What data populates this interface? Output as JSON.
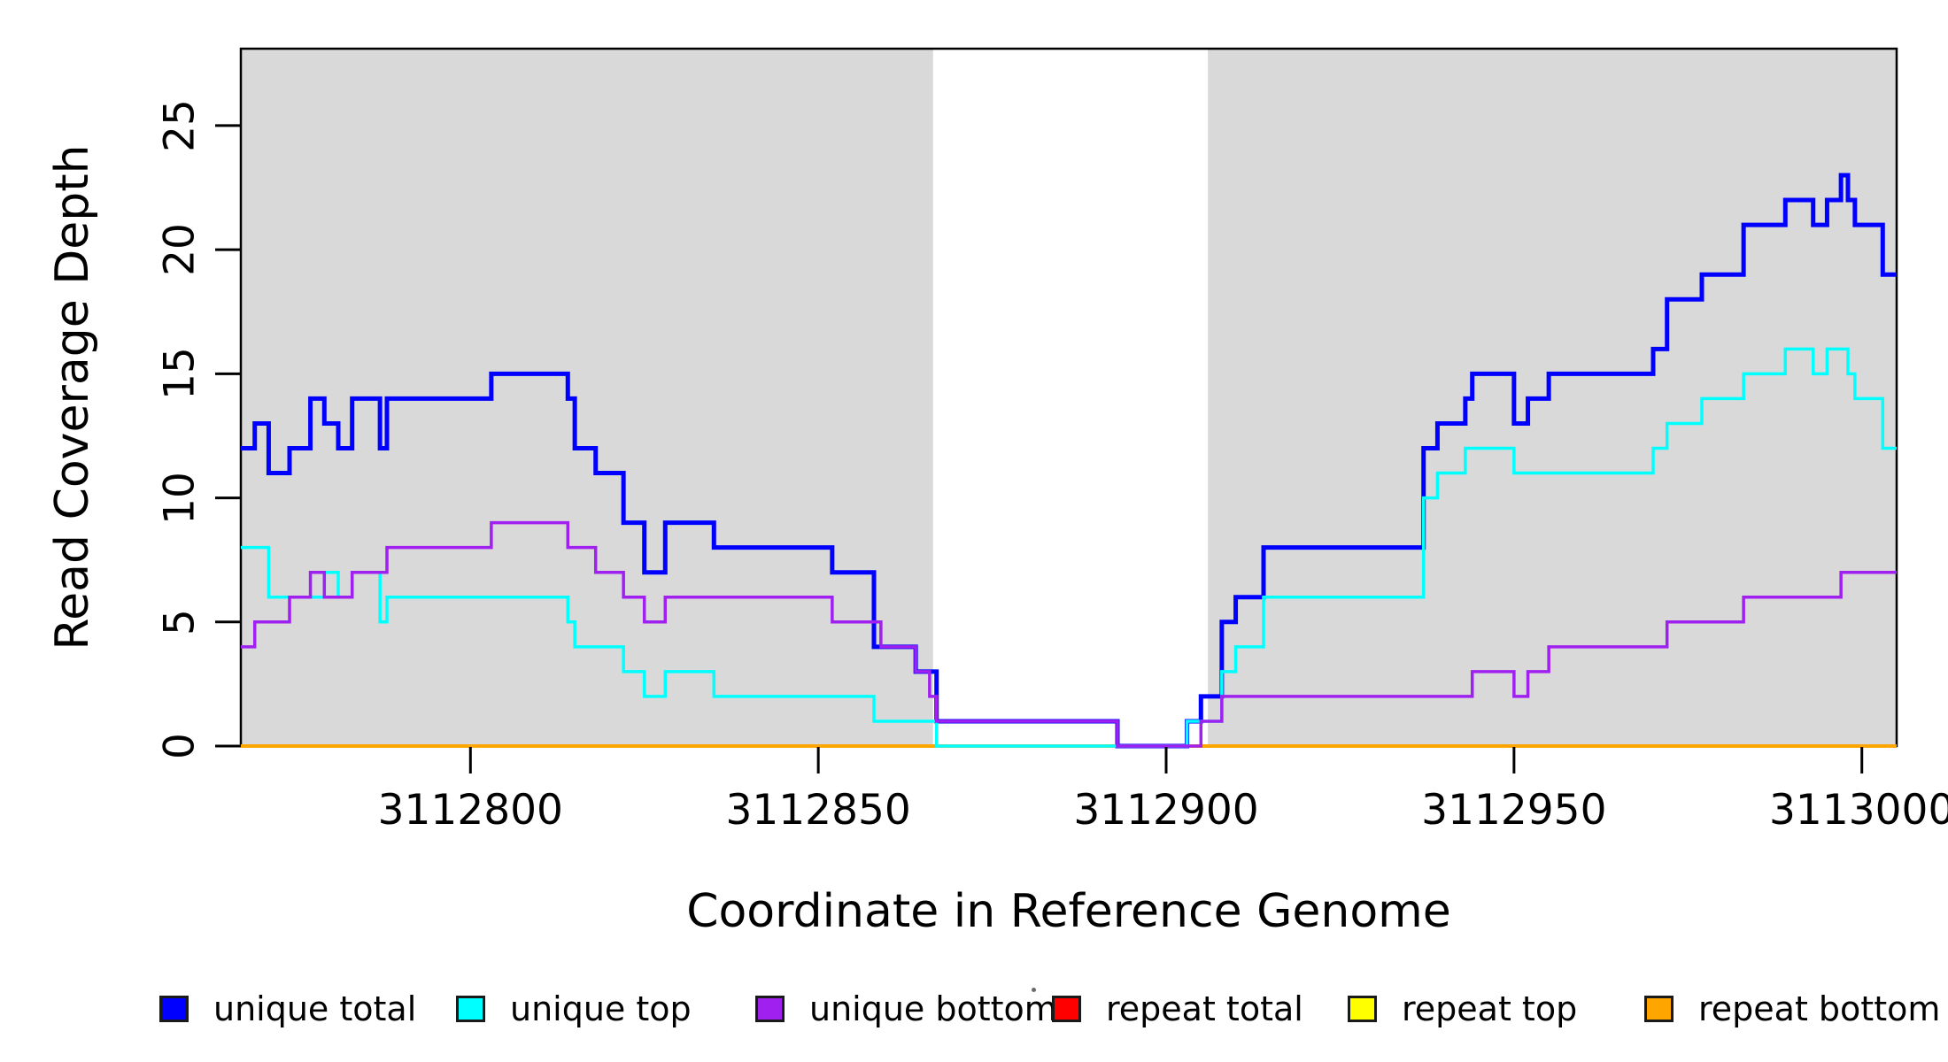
{
  "chart_data": {
    "type": "line",
    "subtype": "step-coverage",
    "xlabel": "Coordinate in Reference Genome",
    "ylabel": "Read Coverage Depth",
    "x_ticks": [
      3112800,
      3112850,
      3112900,
      3112950,
      3113000
    ],
    "y_ticks": [
      0,
      5,
      10,
      15,
      20,
      25
    ],
    "x_range": [
      3112767,
      3113005
    ],
    "y_range": [
      0,
      28.1
    ],
    "grid": false,
    "legend_position": "bottom",
    "panel_shaded_color": "#d9d9d9",
    "panel_gap_color": "#ffffff",
    "border_color": "#000000",
    "shaded_regions": [
      [
        3112767,
        3112866.5
      ],
      [
        3112906,
        3113005
      ]
    ],
    "gap_region": [
      3112866.5,
      3112906
    ],
    "draw_order": [
      "repeat total",
      "repeat top",
      "repeat bottom",
      "unique total",
      "unique top",
      "unique bottom"
    ],
    "series": [
      {
        "name": "unique total",
        "color": "#0000ff",
        "line_width": 5,
        "steps": [
          [
            3112767,
            12
          ],
          [
            3112769,
            13
          ],
          [
            3112771,
            11
          ],
          [
            3112774,
            12
          ],
          [
            3112777,
            14
          ],
          [
            3112779,
            13
          ],
          [
            3112781,
            12
          ],
          [
            3112783,
            14
          ],
          [
            3112787,
            12
          ],
          [
            3112788,
            14
          ],
          [
            3112803,
            15
          ],
          [
            3112814,
            14
          ],
          [
            3112815,
            12
          ],
          [
            3112818,
            11
          ],
          [
            3112822,
            9
          ],
          [
            3112825,
            7
          ],
          [
            3112828,
            9
          ],
          [
            3112835,
            8
          ],
          [
            3112852,
            7
          ],
          [
            3112858,
            4
          ],
          [
            3112864,
            3
          ],
          [
            3112867,
            1
          ],
          [
            3112893,
            0
          ],
          [
            3112903,
            1
          ],
          [
            3112905,
            2
          ],
          [
            3112908,
            5
          ],
          [
            3112910,
            6
          ],
          [
            3112914,
            8
          ],
          [
            3112937,
            12
          ],
          [
            3112939,
            13
          ],
          [
            3112943,
            14
          ],
          [
            3112944,
            15
          ],
          [
            3112950,
            13
          ],
          [
            3112952,
            14
          ],
          [
            3112955,
            15
          ],
          [
            3112970,
            16
          ],
          [
            3112972,
            18
          ],
          [
            3112977,
            19
          ],
          [
            3112983,
            21
          ],
          [
            3112989,
            22
          ],
          [
            3112993,
            21
          ],
          [
            3112995,
            22
          ],
          [
            3112997,
            23
          ],
          [
            3112998,
            22
          ],
          [
            3112999,
            21
          ],
          [
            3113003,
            19
          ],
          [
            3113005,
            19
          ]
        ]
      },
      {
        "name": "unique top",
        "color": "#00ffff",
        "line_width": 3.5,
        "steps": [
          [
            3112767,
            8
          ],
          [
            3112771,
            6
          ],
          [
            3112779,
            7
          ],
          [
            3112781,
            6
          ],
          [
            3112783,
            7
          ],
          [
            3112787,
            5
          ],
          [
            3112788,
            6
          ],
          [
            3112814,
            5
          ],
          [
            3112815,
            4
          ],
          [
            3112822,
            3
          ],
          [
            3112825,
            2
          ],
          [
            3112828,
            3
          ],
          [
            3112835,
            2
          ],
          [
            3112858,
            1
          ],
          [
            3112867,
            0
          ],
          [
            3112903,
            1
          ],
          [
            3112908,
            3
          ],
          [
            3112910,
            4
          ],
          [
            3112914,
            6
          ],
          [
            3112937,
            10
          ],
          [
            3112939,
            11
          ],
          [
            3112943,
            12
          ],
          [
            3112950,
            11
          ],
          [
            3112970,
            12
          ],
          [
            3112972,
            13
          ],
          [
            3112977,
            14
          ],
          [
            3112983,
            15
          ],
          [
            3112989,
            16
          ],
          [
            3112993,
            15
          ],
          [
            3112995,
            16
          ],
          [
            3112998,
            15
          ],
          [
            3112999,
            14
          ],
          [
            3113003,
            12
          ],
          [
            3113005,
            12
          ]
        ]
      },
      {
        "name": "unique bottom",
        "color": "#a020f0",
        "line_width": 3.5,
        "steps": [
          [
            3112767,
            4
          ],
          [
            3112769,
            5
          ],
          [
            3112774,
            6
          ],
          [
            3112777,
            7
          ],
          [
            3112779,
            6
          ],
          [
            3112783,
            7
          ],
          [
            3112788,
            8
          ],
          [
            3112803,
            9
          ],
          [
            3112814,
            8
          ],
          [
            3112818,
            7
          ],
          [
            3112822,
            6
          ],
          [
            3112825,
            5
          ],
          [
            3112828,
            6
          ],
          [
            3112852,
            5
          ],
          [
            3112859,
            4
          ],
          [
            3112864,
            3
          ],
          [
            3112866,
            2
          ],
          [
            3112867,
            1
          ],
          [
            3112893,
            0
          ],
          [
            3112905,
            1
          ],
          [
            3112908,
            2
          ],
          [
            3112944,
            3
          ],
          [
            3112950,
            2
          ],
          [
            3112952,
            3
          ],
          [
            3112955,
            4
          ],
          [
            3112972,
            5
          ],
          [
            3112983,
            6
          ],
          [
            3112997,
            7
          ],
          [
            3113005,
            7
          ]
        ]
      },
      {
        "name": "repeat total",
        "color": "#ff0000",
        "line_width": 4,
        "steps": [
          [
            3112767,
            0
          ],
          [
            3113005,
            0
          ]
        ]
      },
      {
        "name": "repeat top",
        "color": "#ffff00",
        "line_width": 4,
        "steps": [
          [
            3112767,
            0
          ],
          [
            3113005,
            0
          ]
        ]
      },
      {
        "name": "repeat bottom",
        "color": "#ffa500",
        "line_width": 4,
        "steps": [
          [
            3112767,
            0
          ],
          [
            3113005,
            0
          ]
        ]
      }
    ]
  },
  "legend": {
    "items": [
      {
        "label": "unique total",
        "color": "#0000ff"
      },
      {
        "label": "unique top",
        "color": "#00ffff"
      },
      {
        "label": "unique bottom",
        "color": "#a020f0"
      },
      {
        "label": "repeat total",
        "color": "#ff0000"
      },
      {
        "label": "repeat top",
        "color": "#ffff00"
      },
      {
        "label": "repeat bottom",
        "color": "#ffa500"
      }
    ]
  }
}
